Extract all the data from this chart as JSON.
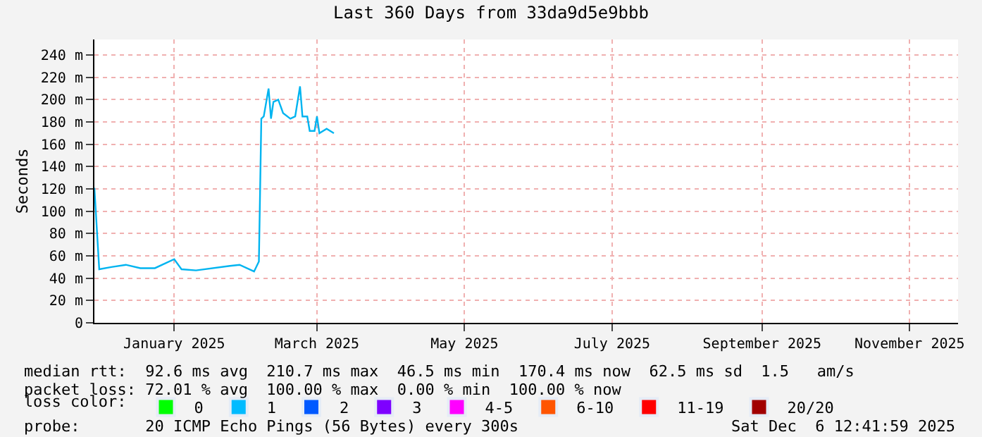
{
  "chart_data": {
    "type": "line",
    "title": "Last 360 Days from 33da9d5e9bbb",
    "ylabel": "Seconds",
    "x": [
      "2024-12-14",
      "2024-12-16",
      "2024-12-21",
      "2024-12-27",
      "2025-01-02",
      "2025-01-08",
      "2025-01-16",
      "2025-01-19",
      "2025-01-25",
      "2025-02-08",
      "2025-02-12",
      "2025-02-18",
      "2025-02-20",
      "2025-02-21",
      "2025-02-22",
      "2025-02-24",
      "2025-02-25",
      "2025-02-26",
      "2025-02-28",
      "2025-03-02",
      "2025-03-05",
      "2025-03-07",
      "2025-03-09",
      "2025-03-10",
      "2025-03-12",
      "2025-03-13",
      "2025-03-15",
      "2025-03-16",
      "2025-03-17",
      "2025-03-20",
      "2025-03-23"
    ],
    "series": [
      {
        "color": "#00b4f0",
        "values": [
          121,
          48,
          50,
          52,
          49,
          49,
          57,
          48,
          47,
          51,
          52,
          46,
          55,
          183,
          185,
          210,
          183,
          198,
          200,
          188,
          183,
          185,
          212,
          185,
          185,
          172,
          172,
          185,
          170,
          174,
          170
        ]
      },
      {
        "name": "0",
        "type": "bar",
        "color": "#00ff00",
        "values": [
          null,
          null,
          null,
          null,
          null,
          null,
          null,
          null,
          null,
          null,
          null,
          null,
          null,
          null,
          null,
          null,
          null,
          null,
          null,
          null,
          null,
          null,
          null,
          null,
          null,
          null,
          null,
          null,
          null,
          null,
          null
        ]
      },
      {
        "name": "1",
        "type": "bar",
        "color": "#00bbff",
        "values": [
          null,
          null,
          null,
          null,
          null,
          null,
          null,
          null,
          null,
          null,
          null,
          null,
          null,
          null,
          null,
          null,
          null,
          null,
          null,
          null,
          null,
          null,
          null,
          null,
          null,
          null,
          null,
          null,
          null,
          null,
          null
        ]
      },
      {
        "name": "2",
        "type": "bar",
        "color": "#0059ff",
        "values": [
          null,
          null,
          null,
          null,
          null,
          null,
          null,
          null,
          null,
          null,
          null,
          null,
          null,
          null,
          null,
          null,
          null,
          null,
          null,
          null,
          null,
          null,
          null,
          null,
          null,
          null,
          null,
          null,
          null,
          null,
          null
        ]
      },
      {
        "name": "3",
        "type": "bar",
        "color": "#7e00ff",
        "values": [
          null,
          null,
          null,
          null,
          null,
          null,
          null,
          null,
          null,
          null,
          null,
          null,
          null,
          null,
          null,
          null,
          null,
          null,
          null,
          null,
          null,
          null,
          null,
          null,
          null,
          null,
          null,
          null,
          null,
          null,
          null
        ]
      },
      {
        "name": "4-5",
        "type": "bar",
        "color": "#ff00ff",
        "values": [
          null,
          null,
          null,
          null,
          null,
          null,
          null,
          null,
          null,
          null,
          null,
          null,
          null,
          null,
          null,
          null,
          null,
          null,
          null,
          null,
          null,
          null,
          null,
          null,
          null,
          null,
          null,
          null,
          null,
          null,
          null
        ]
      },
      {
        "name": "6-10",
        "type": "bar",
        "color": "#ff5500",
        "values": [
          null,
          null,
          null,
          null,
          null,
          null,
          null,
          null,
          null,
          null,
          null,
          null,
          null,
          null,
          null,
          null,
          null,
          null,
          null,
          null,
          null,
          null,
          null,
          null,
          null,
          null,
          null,
          null,
          null,
          null,
          null
        ]
      },
      {
        "name": "11-19",
        "type": "bar",
        "color": "#ff0000",
        "values": [
          null,
          null,
          null,
          null,
          null,
          null,
          null,
          null,
          null,
          null,
          null,
          null,
          null,
          null,
          null,
          null,
          null,
          null,
          null,
          null,
          null,
          null,
          null,
          null,
          null,
          null,
          null,
          null,
          null,
          null,
          null
        ]
      },
      {
        "name": "20/20",
        "type": "bar",
        "color": "#a10000",
        "values": [
          null,
          null,
          null,
          null,
          null,
          null,
          null,
          null,
          null,
          null,
          null,
          null,
          null,
          null,
          null,
          null,
          null,
          null,
          null,
          null,
          null,
          null,
          null,
          null,
          null,
          null,
          null,
          null,
          null,
          null,
          null
        ]
      }
    ],
    "legend": "bottom",
    "legend_title": "loss color:",
    "xlim": [
      "2024-12-14",
      "2025-12-06"
    ],
    "xticks": [
      {
        "value": "2025-01-16",
        "label": "January 2025"
      },
      {
        "value": "2025-03-16",
        "label": "March 2025"
      },
      {
        "value": "2025-05-16",
        "label": "May 2025"
      },
      {
        "value": "2025-07-16",
        "label": "July 2025"
      },
      {
        "value": "2025-09-16",
        "label": "September 2025"
      },
      {
        "value": "2025-11-16",
        "label": "November 2025"
      }
    ],
    "ylim": [
      0,
      254
    ],
    "yticks": [
      {
        "value": 0,
        "label": "0"
      },
      {
        "value": 20,
        "label": "20 m"
      },
      {
        "value": 40,
        "label": "40 m"
      },
      {
        "value": 60,
        "label": "60 m"
      },
      {
        "value": 80,
        "label": "80 m"
      },
      {
        "value": 100,
        "label": "100 m"
      },
      {
        "value": 120,
        "label": "120 m"
      },
      {
        "value": 140,
        "label": "140 m"
      },
      {
        "value": 160,
        "label": "160 m"
      },
      {
        "value": 180,
        "label": "180 m"
      },
      {
        "value": 200,
        "label": "200 m"
      },
      {
        "value": 220,
        "label": "220 m"
      },
      {
        "value": 240,
        "label": "240 m"
      }
    ],
    "grid": true,
    "annotations": [
      "median rtt:  92.6 ms avg  210.7 ms max  46.5 ms min  170.4 ms now  62.5 ms sd  1.5   am/s",
      "packet loss: 72.01 % avg  100.00 % max  0.00 % min  100.00 % now",
      "probe:       20 ICMP Echo Pings (56 Bytes) every 300s",
      "Sat Dec  6 12:41:59 2025"
    ]
  }
}
